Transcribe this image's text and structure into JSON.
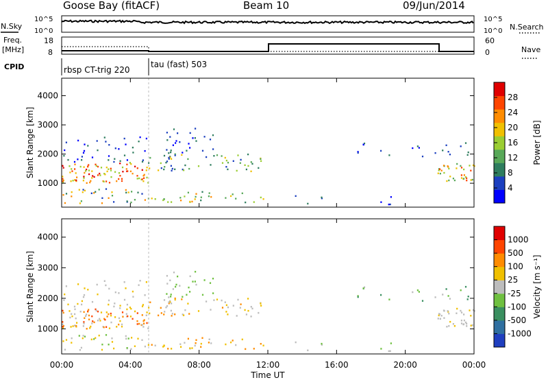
{
  "header": {
    "station": "Goose Bay (fitACF)",
    "beam": "Beam 10",
    "date": "09/Jun/2014"
  },
  "noise_panel": {
    "left_label": "N.Sky",
    "left_ticks": [
      "10^5",
      "10^0"
    ],
    "right_label": "N.Search",
    "right_ticks": [
      "10^5",
      "10^0"
    ]
  },
  "freq_panel": {
    "left_label_1": "Freq.",
    "left_label_2": "[MHz]",
    "left_ticks": [
      "18",
      "8"
    ],
    "right_label": "Nave",
    "right_ticks": [
      "60",
      "0"
    ]
  },
  "cpid": {
    "label": "CPID",
    "segments": [
      "rbsp CT-trig 220",
      "tau (fast) 503"
    ]
  },
  "x_axis": {
    "label": "Time UT",
    "ticks": [
      "00:00",
      "04:00",
      "08:00",
      "12:00",
      "16:00",
      "20:00",
      "00:00"
    ]
  },
  "power_panel": {
    "ylabel": "Slant Range [km]",
    "yticks": [
      "1000",
      "2000",
      "3000",
      "4000"
    ],
    "colorbar_title": "Power [dB]",
    "colorbar_ticks": [
      "28",
      "24",
      "20",
      "16",
      "12",
      "8",
      "4"
    ],
    "colors": [
      "#0000ff",
      "#1b3fbf",
      "#2e7d5e",
      "#58a858",
      "#9acd32",
      "#f0c000",
      "#ff8c00",
      "#ff4500",
      "#e00000"
    ]
  },
  "velocity_panel": {
    "ylabel": "Slant Range [km]",
    "yticks": [
      "1000",
      "2000",
      "3000",
      "4000"
    ],
    "colorbar_title": "Velocity [m s⁻¹]",
    "colorbar_ticks": [
      "1000",
      "500",
      "100",
      "25",
      "-25",
      "-100",
      "-500",
      "-1000"
    ],
    "colors": [
      "#1f3fbf",
      "#2f6fa0",
      "#3a8f60",
      "#6fc040",
      "#bdbdbd",
      "#f0c000",
      "#ff8c00",
      "#ff4500",
      "#e00000"
    ]
  },
  "chart_data": [
    {
      "type": "line",
      "title": "Goose Bay (fitACF) Beam 10 09/Jun/2014",
      "panel": "noise",
      "x": [
        0,
        24
      ],
      "ylim_log10": [
        0,
        5
      ],
      "series": [
        {
          "name": "N.Sky",
          "values_log10_approx": [
            3.0,
            3.0
          ]
        },
        {
          "name": "N.Search",
          "values_log10_approx": [
            3.0,
            3.0
          ]
        }
      ]
    },
    {
      "type": "line",
      "panel": "freq_nave",
      "xlim_hours": [
        0,
        24
      ],
      "series": [
        {
          "name": "Freq.",
          "points_hours_mhz": [
            [
              0,
              10.2
            ],
            [
              5,
              10.2
            ],
            [
              5,
              9.7
            ],
            [
              12,
              9.7
            ],
            [
              12,
              9.9
            ],
            [
              24,
              9.9
            ]
          ]
        },
        {
          "name": "Nave",
          "points_hours": [
            [
              0,
              25
            ],
            [
              5,
              25
            ],
            [
              5,
              12
            ],
            [
              24,
              12
            ]
          ]
        }
      ]
    },
    {
      "type": "heatmap",
      "panel": "power",
      "xlim_hours": [
        0,
        24
      ],
      "ylim_km": [
        180,
        4600
      ],
      "colorbar_range_db": [
        0,
        30
      ],
      "note": "scatter echoes; strong band ~1000-1700 km 00:00-05:00"
    },
    {
      "type": "heatmap",
      "panel": "velocity",
      "xlim_hours": [
        0,
        24
      ],
      "ylim_km": [
        180,
        4600
      ],
      "colorbar_range_ms": [
        -1000,
        1000
      ]
    }
  ]
}
